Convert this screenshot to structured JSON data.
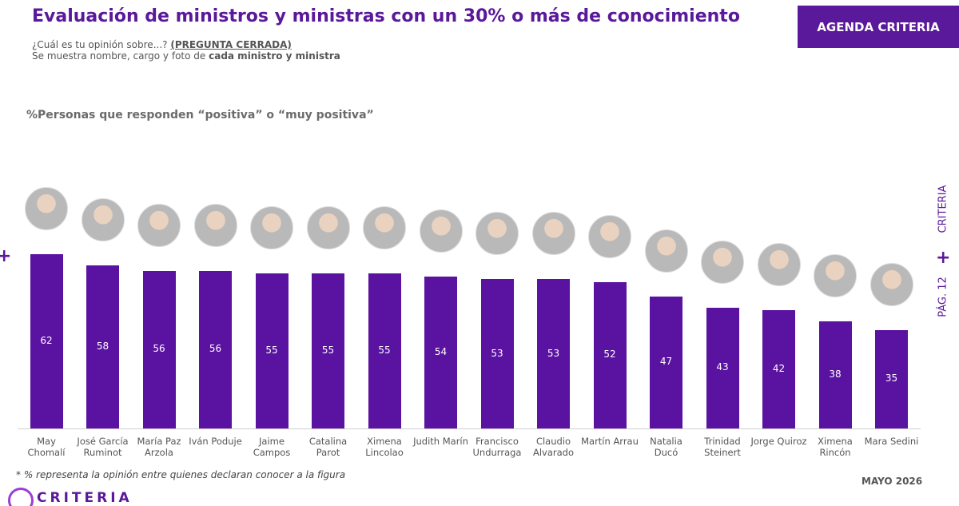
{
  "chart_data": {
    "type": "bar",
    "title": "Evaluación de ministros y ministras con un 30% o más de conocimiento",
    "question": "¿Cuál es tu opinión sobre...?",
    "question_type": "(PREGUNTA CERRADA)",
    "note": "Se muestra nombre, cargo y foto de",
    "note_bold": "cada ministro y ministra",
    "subtitle": "%Personas que responden “positiva” o “muy positiva”",
    "footnote": "* % representa la opinión entre quienes declaran conocer a la figura",
    "categories": [
      "May Chomalí",
      "José García Ruminot",
      "María Paz Arzola",
      "Iván Poduje",
      "Jaime Campos",
      "Catalina Parot",
      "Ximena Lincolao",
      "Judith Marín",
      "Francisco Undurraga",
      "Claudio Alvarado",
      "Martín Arrau",
      "Natalia Ducó",
      "Trinidad Steinert",
      "Jorge Quiroz",
      "Ximena Rincón",
      "Mara Sedini"
    ],
    "values": [
      62,
      58,
      56,
      56,
      55,
      55,
      55,
      54,
      53,
      53,
      52,
      47,
      43,
      42,
      38,
      35
    ],
    "color": "#5a12a0"
  },
  "agenda_button": "AGENDA CRITERIA",
  "side_brand": "CRITERIA",
  "page_number": "PÁG. 12",
  "date": "MAYO 2026",
  "logo": "CRITERIA"
}
